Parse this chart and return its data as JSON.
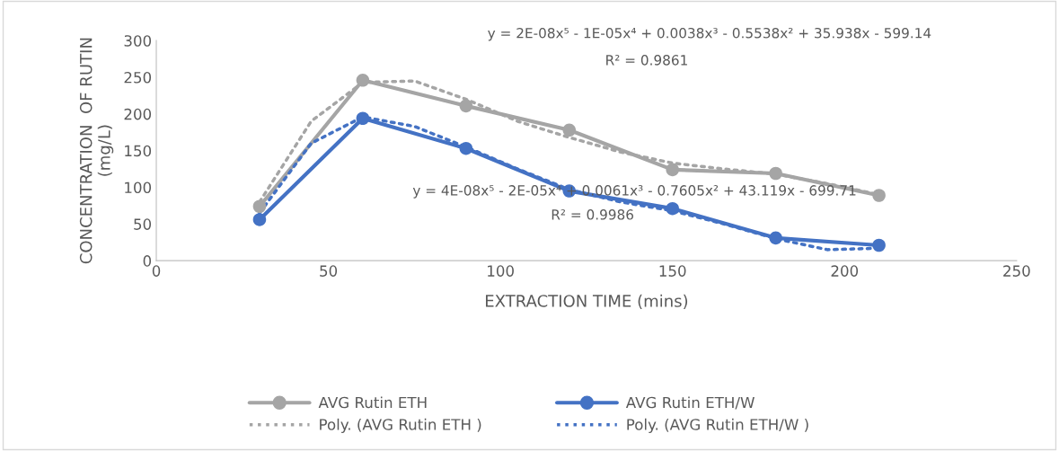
{
  "chart_data": {
    "type": "line",
    "xlabel": "EXTRACTION TIME (mins)",
    "ylabel": "CONCENTRATION  OF RUTIN\n(mg/L)",
    "xlim": [
      0,
      250
    ],
    "xticks": [
      0,
      50,
      100,
      150,
      200,
      250
    ],
    "ylim": [
      0,
      300
    ],
    "yticks": [
      0,
      50,
      100,
      150,
      200,
      250,
      300
    ],
    "grid": false,
    "legend": "bottom",
    "series": [
      {
        "name": "AVG Rutin ETH",
        "color": "#a5a5a5",
        "marker": "circle",
        "line_style": "solid",
        "x": [
          30,
          60,
          90,
          120,
          150,
          180,
          210
        ],
        "values": [
          74,
          246,
          211,
          178,
          124,
          119,
          89
        ]
      },
      {
        "name": "AVG Rutin ETH/W",
        "color": "#4472c4",
        "marker": "circle",
        "line_style": "solid",
        "x": [
          30,
          60,
          90,
          120,
          150,
          180,
          210
        ],
        "values": [
          56,
          194,
          153,
          95,
          71,
          31,
          21
        ]
      },
      {
        "name": "Poly. (AVG Rutin ETH )",
        "color": "#a5a5a5",
        "marker": "none",
        "line_style": "dotted",
        "x": [
          30,
          45,
          60,
          75,
          90,
          105,
          120,
          135,
          150,
          165,
          180,
          195,
          210
        ],
        "values": [
          80,
          190,
          243,
          245,
          220,
          190,
          168,
          148,
          133,
          125,
          118,
          105,
          90
        ]
      },
      {
        "name": "Poly. (AVG Rutin ETH/W )",
        "color": "#4472c4",
        "marker": "none",
        "line_style": "dotted",
        "x": [
          30,
          45,
          60,
          75,
          90,
          105,
          120,
          135,
          150,
          165,
          180,
          195,
          210
        ],
        "values": [
          65,
          160,
          196,
          183,
          155,
          125,
          97,
          80,
          68,
          50,
          30,
          15,
          17
        ]
      }
    ],
    "annotations": [
      "y = 2E-08x⁵ - 1E-05x⁴ + 0.0038x³ - 0.5538x² + 35.938x - 599.14",
      "R² = 0.9861",
      "y = 4E-08x⁵ - 2E-05x⁴ + 0.0061x³ - 0.7605x² + 43.119x - 699.71",
      "R² = 0.9986"
    ]
  }
}
